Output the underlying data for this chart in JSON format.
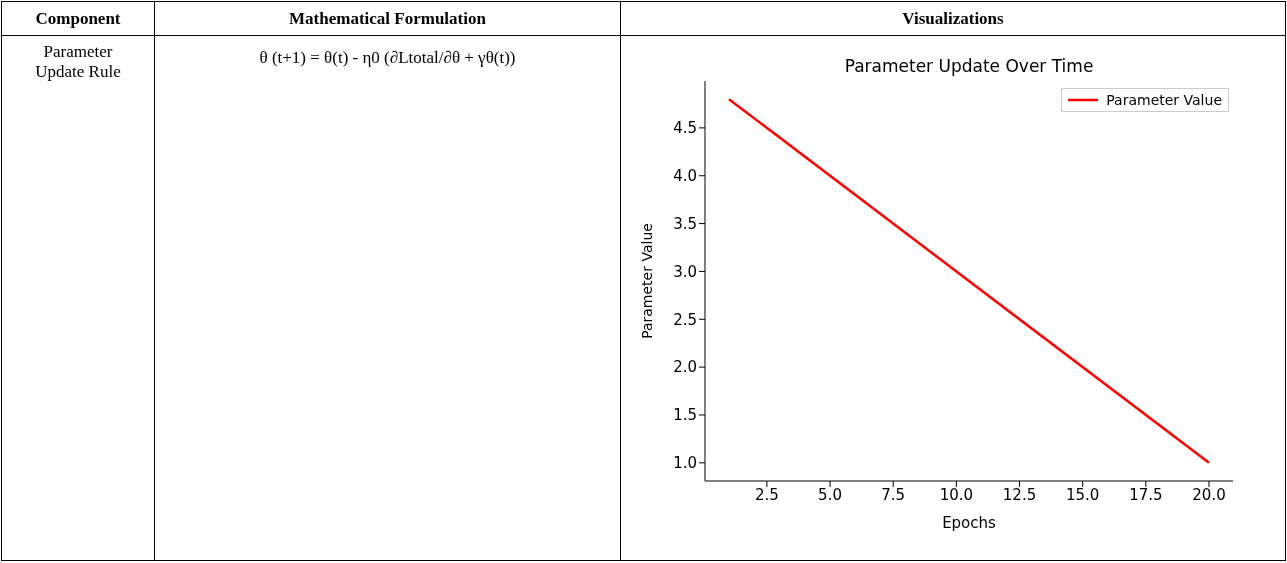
{
  "chart_data": {
    "type": "line",
    "title": "Parameter Update Over Time",
    "xlabel": "Epochs",
    "ylabel": "Parameter Value",
    "x": [
      1,
      20
    ],
    "series": [
      {
        "name": "Parameter Value",
        "color": "#ff0000",
        "values": [
          4.8,
          1.0
        ]
      }
    ],
    "xlim": [
      0.05,
      20.95
    ],
    "ylim": [
      0.81,
      4.99
    ],
    "xticks": [
      {
        "value": 2.5,
        "label": "2.5"
      },
      {
        "value": 5,
        "label": "5.0"
      },
      {
        "value": 7.5,
        "label": "7.5"
      },
      {
        "value": 10,
        "label": "10.0"
      },
      {
        "value": 12.5,
        "label": "12.5"
      },
      {
        "value": 15,
        "label": "15.0"
      },
      {
        "value": 17.5,
        "label": "17.5"
      },
      {
        "value": 20,
        "label": "20.0"
      }
    ],
    "yticks": [
      {
        "value": 1,
        "label": "1.0"
      },
      {
        "value": 1.5,
        "label": "1.5"
      },
      {
        "value": 2,
        "label": "2.0"
      },
      {
        "value": 2.5,
        "label": "2.5"
      },
      {
        "value": 3,
        "label": "3.0"
      },
      {
        "value": 3.5,
        "label": "3.5"
      },
      {
        "value": 4,
        "label": "4.0"
      },
      {
        "value": 4.5,
        "label": "4.5"
      }
    ],
    "legend": "top right",
    "annotations": [
      "Component",
      "Mathematical Formulation",
      "Visualizations",
      "Parameter Update Rule",
      "θ (t+1) = θ(t) - η0 (∂Ltotal/∂θ + γθ(t))"
    ]
  }
}
